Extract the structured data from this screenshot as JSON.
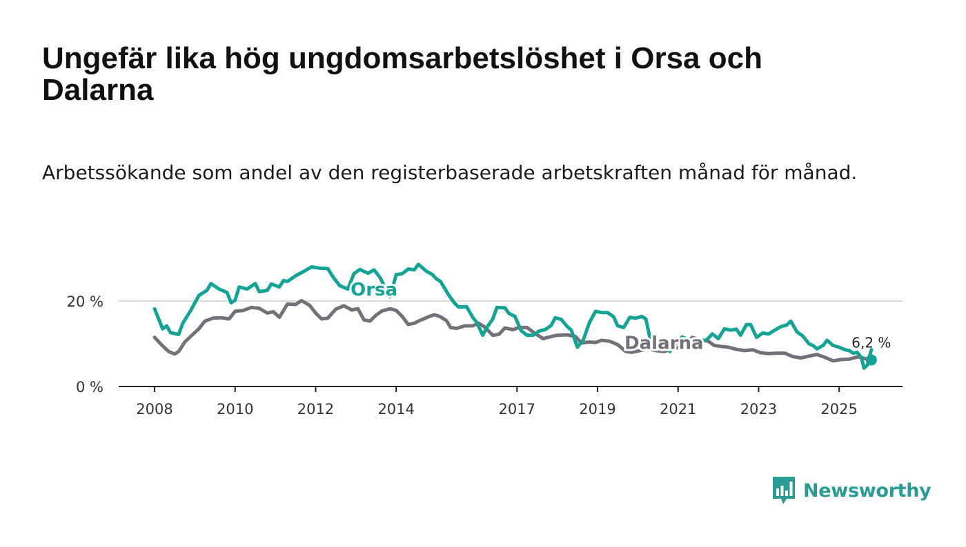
{
  "title": "Ungefär lika hög ungdomsarbetslöshet i Orsa och Dalarna",
  "subtitle": "Arbetssökande som andel av den registerbaserade arbetskraften månad för månad.",
  "brand": {
    "name": "Newsworthy",
    "color": "#2a9c94"
  },
  "chart_data": {
    "type": "line",
    "title": "Ungefär lika hög ungdomsarbetslöshet i Orsa och Dalarna",
    "xlabel": "",
    "ylabel": "",
    "xlim": [
      2008.0,
      2025.7
    ],
    "ylim": [
      0,
      30
    ],
    "x_ticks": [
      2008,
      2010,
      2012,
      2014,
      2017,
      2019,
      2021,
      2023,
      2025
    ],
    "x_tick_labels": [
      "2008",
      "2010",
      "2012",
      "2014",
      "2017",
      "2019",
      "2021",
      "2023",
      "2025"
    ],
    "y_ticks": [
      0,
      20
    ],
    "y_tick_labels": [
      "0 %",
      "20 %"
    ],
    "grid": true,
    "end_label": "6,2 %",
    "end_value": 6.2,
    "series": [
      {
        "name": "Orsa",
        "color": "#15a396",
        "label_at": [
          2013.45,
          21.3
        ],
        "points": [
          [
            2008.0,
            18.2
          ],
          [
            2008.2,
            13.5
          ],
          [
            2008.3,
            14.2
          ],
          [
            2008.4,
            12.6
          ],
          [
            2008.6,
            12.2
          ],
          [
            2008.7,
            14.8
          ],
          [
            2008.9,
            17.8
          ],
          [
            2009.1,
            21.3
          ],
          [
            2009.3,
            22.5
          ],
          [
            2009.4,
            24.1
          ],
          [
            2009.6,
            22.8
          ],
          [
            2009.8,
            22.0
          ],
          [
            2009.9,
            19.6
          ],
          [
            2010.0,
            20.2
          ],
          [
            2010.1,
            23.3
          ],
          [
            2010.3,
            22.8
          ],
          [
            2010.5,
            24.1
          ],
          [
            2010.6,
            22.2
          ],
          [
            2010.8,
            22.5
          ],
          [
            2010.9,
            24.0
          ],
          [
            2011.1,
            23.3
          ],
          [
            2011.2,
            24.8
          ],
          [
            2011.3,
            24.6
          ],
          [
            2011.5,
            25.9
          ],
          [
            2011.7,
            26.9
          ],
          [
            2011.9,
            28.0
          ],
          [
            2012.1,
            27.7
          ],
          [
            2012.3,
            27.6
          ],
          [
            2012.45,
            25.4
          ],
          [
            2012.6,
            23.6
          ],
          [
            2012.8,
            22.8
          ],
          [
            2012.95,
            26.4
          ],
          [
            2013.1,
            27.4
          ],
          [
            2013.3,
            26.5
          ],
          [
            2013.45,
            27.3
          ],
          [
            2013.6,
            25.5
          ],
          [
            2013.7,
            23.6
          ],
          [
            2013.85,
            21.0
          ],
          [
            2014.0,
            26.2
          ],
          [
            2014.15,
            26.4
          ],
          [
            2014.3,
            27.5
          ],
          [
            2014.45,
            27.3
          ],
          [
            2014.55,
            28.6
          ],
          [
            2014.75,
            27.0
          ],
          [
            2014.9,
            26.2
          ],
          [
            2015.0,
            25.2
          ],
          [
            2015.1,
            24.6
          ],
          [
            2015.3,
            21.5
          ],
          [
            2015.45,
            19.5
          ],
          [
            2015.55,
            18.6
          ],
          [
            2015.75,
            18.7
          ],
          [
            2015.9,
            16.2
          ],
          [
            2016.0,
            15.0
          ],
          [
            2016.15,
            12.0
          ],
          [
            2016.25,
            13.8
          ],
          [
            2016.4,
            15.8
          ],
          [
            2016.5,
            18.5
          ],
          [
            2016.7,
            18.4
          ],
          [
            2016.8,
            17.1
          ],
          [
            2016.95,
            16.4
          ],
          [
            2017.1,
            13.1
          ],
          [
            2017.25,
            12.0
          ],
          [
            2017.4,
            12.0
          ],
          [
            2017.55,
            13.0
          ],
          [
            2017.7,
            13.3
          ],
          [
            2017.85,
            14.3
          ],
          [
            2017.95,
            16.1
          ],
          [
            2018.1,
            15.7
          ],
          [
            2018.25,
            14.0
          ],
          [
            2018.35,
            13.2
          ],
          [
            2018.5,
            9.2
          ],
          [
            2018.65,
            11.0
          ],
          [
            2018.8,
            15.0
          ],
          [
            2018.95,
            17.6
          ],
          [
            2019.1,
            17.3
          ],
          [
            2019.25,
            17.3
          ],
          [
            2019.4,
            16.3
          ],
          [
            2019.5,
            14.2
          ],
          [
            2019.65,
            13.8
          ],
          [
            2019.8,
            16.2
          ],
          [
            2019.95,
            16.0
          ],
          [
            2020.1,
            16.4
          ],
          [
            2020.2,
            15.8
          ],
          [
            2020.3,
            11.5
          ],
          [
            2020.45,
            11.2
          ],
          [
            2020.6,
            10.1
          ],
          [
            2020.7,
            9.2
          ],
          [
            2020.8,
            8.2
          ],
          [
            2020.95,
            10.2
          ],
          [
            2021.1,
            11.6
          ],
          [
            2021.25,
            11.0
          ],
          [
            2021.4,
            10.2
          ],
          [
            2021.55,
            10.8
          ],
          [
            2021.7,
            10.8
          ],
          [
            2021.85,
            12.3
          ],
          [
            2022.0,
            11.2
          ],
          [
            2022.15,
            13.5
          ],
          [
            2022.3,
            13.2
          ],
          [
            2022.45,
            13.4
          ],
          [
            2022.55,
            12.0
          ],
          [
            2022.7,
            14.5
          ],
          [
            2022.8,
            14.5
          ],
          [
            2022.95,
            11.5
          ],
          [
            2023.1,
            12.5
          ],
          [
            2023.25,
            12.3
          ],
          [
            2023.4,
            13.2
          ],
          [
            2023.55,
            14.0
          ],
          [
            2023.7,
            14.4
          ],
          [
            2023.8,
            15.3
          ],
          [
            2023.95,
            12.8
          ],
          [
            2024.1,
            11.8
          ],
          [
            2024.25,
            10.0
          ],
          [
            2024.35,
            9.6
          ],
          [
            2024.45,
            8.8
          ],
          [
            2024.6,
            9.6
          ],
          [
            2024.7,
            10.8
          ],
          [
            2024.85,
            9.6
          ],
          [
            2025.0,
            9.2
          ],
          [
            2025.15,
            8.6
          ],
          [
            2025.25,
            8.4
          ],
          [
            2025.35,
            7.8
          ],
          [
            2025.45,
            8.0
          ],
          [
            2025.55,
            6.8
          ],
          [
            2025.62,
            4.3
          ],
          [
            2025.7,
            5.0
          ],
          [
            2025.8,
            8.6
          ]
        ]
      },
      {
        "name": "Dalarna",
        "color": "#74707a",
        "label_at": [
          2020.65,
          8.8
        ],
        "points": [
          [
            2008.0,
            11.5
          ],
          [
            2008.2,
            9.5
          ],
          [
            2008.35,
            8.2
          ],
          [
            2008.5,
            7.6
          ],
          [
            2008.6,
            8.2
          ],
          [
            2008.75,
            10.4
          ],
          [
            2008.95,
            12.2
          ],
          [
            2009.1,
            13.5
          ],
          [
            2009.25,
            15.3
          ],
          [
            2009.45,
            16.0
          ],
          [
            2009.65,
            16.1
          ],
          [
            2009.85,
            15.8
          ],
          [
            2010.0,
            17.6
          ],
          [
            2010.2,
            17.8
          ],
          [
            2010.4,
            18.5
          ],
          [
            2010.6,
            18.3
          ],
          [
            2010.8,
            17.2
          ],
          [
            2010.95,
            17.5
          ],
          [
            2011.1,
            16.2
          ],
          [
            2011.3,
            19.3
          ],
          [
            2011.5,
            19.2
          ],
          [
            2011.65,
            20.1
          ],
          [
            2011.85,
            19.0
          ],
          [
            2012.0,
            17.2
          ],
          [
            2012.15,
            15.8
          ],
          [
            2012.3,
            16.0
          ],
          [
            2012.5,
            18.1
          ],
          [
            2012.7,
            18.9
          ],
          [
            2012.9,
            17.9
          ],
          [
            2013.05,
            18.2
          ],
          [
            2013.2,
            15.6
          ],
          [
            2013.35,
            15.3
          ],
          [
            2013.5,
            16.7
          ],
          [
            2013.65,
            17.7
          ],
          [
            2013.85,
            18.2
          ],
          [
            2014.0,
            17.8
          ],
          [
            2014.15,
            16.4
          ],
          [
            2014.3,
            14.5
          ],
          [
            2014.45,
            14.8
          ],
          [
            2014.6,
            15.5
          ],
          [
            2014.8,
            16.3
          ],
          [
            2014.95,
            16.8
          ],
          [
            2015.1,
            16.3
          ],
          [
            2015.25,
            15.4
          ],
          [
            2015.35,
            13.8
          ],
          [
            2015.5,
            13.6
          ],
          [
            2015.7,
            14.2
          ],
          [
            2015.9,
            14.2
          ],
          [
            2016.05,
            14.8
          ],
          [
            2016.2,
            13.9
          ],
          [
            2016.4,
            12.0
          ],
          [
            2016.55,
            12.2
          ],
          [
            2016.7,
            13.7
          ],
          [
            2016.9,
            13.3
          ],
          [
            2017.05,
            13.8
          ],
          [
            2017.25,
            13.8
          ],
          [
            2017.45,
            12.4
          ],
          [
            2017.65,
            11.2
          ],
          [
            2017.85,
            11.7
          ],
          [
            2018.0,
            12.0
          ],
          [
            2018.25,
            12.1
          ],
          [
            2018.45,
            11.7
          ],
          [
            2018.6,
            10.2
          ],
          [
            2018.8,
            10.4
          ],
          [
            2018.95,
            10.3
          ],
          [
            2019.1,
            10.8
          ],
          [
            2019.3,
            10.6
          ],
          [
            2019.5,
            9.8
          ],
          [
            2019.7,
            8.2
          ],
          [
            2019.85,
            8.0
          ],
          [
            2020.05,
            8.4
          ],
          [
            2020.25,
            8.8
          ],
          [
            2020.45,
            8.4
          ],
          [
            2020.65,
            8.2
          ],
          [
            2020.85,
            8.7
          ],
          [
            2021.0,
            9.1
          ],
          [
            2021.15,
            9.6
          ],
          [
            2021.35,
            11.5
          ],
          [
            2021.55,
            10.9
          ],
          [
            2021.75,
            10.6
          ],
          [
            2021.9,
            9.6
          ],
          [
            2022.05,
            9.4
          ],
          [
            2022.25,
            9.2
          ],
          [
            2022.45,
            8.7
          ],
          [
            2022.65,
            8.4
          ],
          [
            2022.85,
            8.6
          ],
          [
            2023.05,
            7.9
          ],
          [
            2023.25,
            7.7
          ],
          [
            2023.45,
            7.8
          ],
          [
            2023.65,
            7.8
          ],
          [
            2023.85,
            7.0
          ],
          [
            2024.05,
            6.7
          ],
          [
            2024.25,
            7.1
          ],
          [
            2024.45,
            7.5
          ],
          [
            2024.65,
            6.8
          ],
          [
            2024.85,
            6.0
          ],
          [
            2025.05,
            6.3
          ],
          [
            2025.25,
            6.4
          ],
          [
            2025.45,
            6.9
          ],
          [
            2025.55,
            6.8
          ],
          [
            2025.68,
            6.4
          ]
        ]
      }
    ]
  }
}
